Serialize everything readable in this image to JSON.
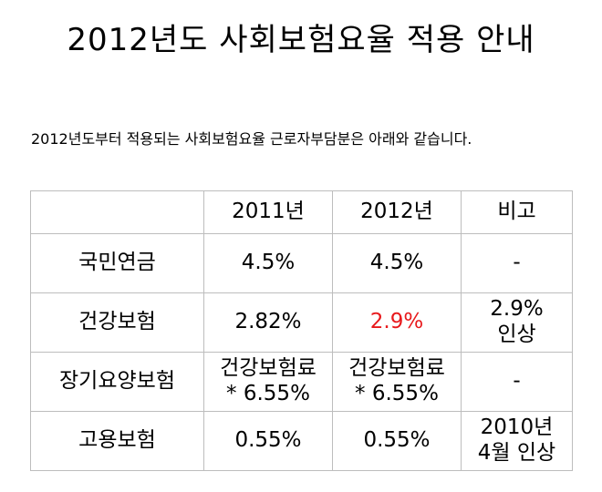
{
  "title": "2012년도 사회보험요율 적용 안내",
  "intro": "2012년도부터 적용되는 사회보험요율 근로자부담분은 아래와 같습니다.",
  "table": {
    "headers": [
      "",
      "2011년",
      "2012년",
      "비고"
    ],
    "rows": [
      {
        "label": "국민연금",
        "y2011": "4.5%",
        "y2012": "4.5%",
        "note": "-"
      },
      {
        "label": "건강보험",
        "y2011": "2.82%",
        "y2012": "2.9%",
        "note_line1": "2.9%",
        "note_line2": "인상"
      },
      {
        "label": "장기요양보험",
        "y2011_line1": "건강보험료",
        "y2011_line2": "* 6.55%",
        "y2012_line1": "건강보험료",
        "y2012_line2": "* 6.55%",
        "note": "-"
      },
      {
        "label": "고용보험",
        "y2011": "0.55%",
        "y2012": "0.55%",
        "note_line1": "2010년",
        "note_line2": "4월 인상"
      }
    ]
  },
  "colors": {
    "highlight": "#e8191c",
    "border": "#bdbdbd"
  }
}
